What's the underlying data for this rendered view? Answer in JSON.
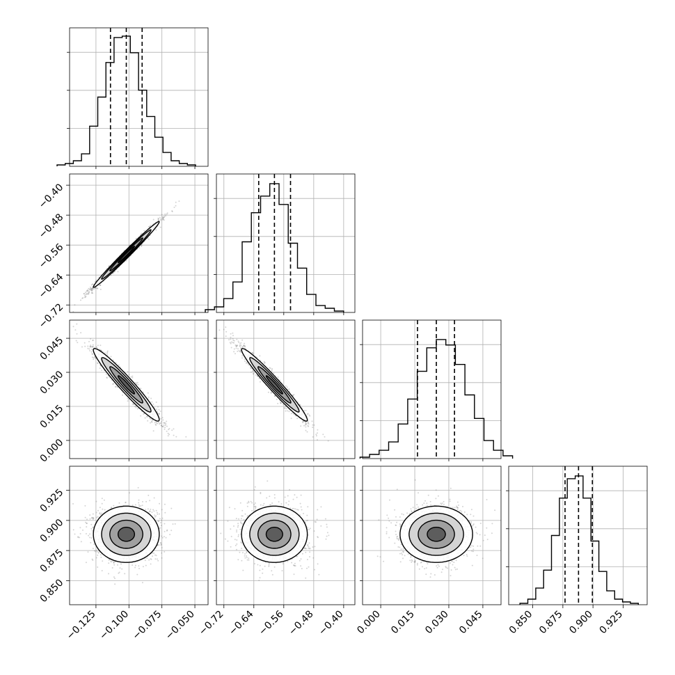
{
  "chart_data": {
    "type": "scatter",
    "plot_kind": "corner",
    "grid": true,
    "params": [
      {
        "ticks": [
          -0.125,
          -0.1,
          -0.075,
          -0.05
        ],
        "tick_labels": [
          "−0.125",
          "−0.100",
          "−0.075",
          "−0.050"
        ],
        "range": [
          -0.145,
          -0.04
        ],
        "mean": -0.102,
        "sd": 0.0125,
        "quantiles": [
          -0.114,
          -0.102,
          -0.09
        ]
      },
      {
        "ticks": [
          -0.72,
          -0.64,
          -0.56,
          -0.48,
          -0.4
        ],
        "tick_labels": [
          "−0.72",
          "−0.64",
          "−0.56",
          "−0.48",
          "−0.40"
        ],
        "range": [
          -0.74,
          -0.37
        ],
        "mean": -0.585,
        "sd": 0.044,
        "quantiles": [
          -0.627,
          -0.585,
          -0.542
        ]
      },
      {
        "ticks": [
          0.0,
          0.015,
          0.03,
          0.045
        ],
        "tick_labels": [
          "0.000",
          "0.015",
          "0.030",
          "0.045"
        ],
        "range": [
          -0.008,
          0.053
        ],
        "mean": 0.0245,
        "sd": 0.008,
        "quantiles": [
          0.0162,
          0.0245,
          0.0325
        ]
      },
      {
        "ticks": [
          0.85,
          0.875,
          0.9,
          0.925
        ],
        "tick_labels": [
          "0.850",
          "0.875",
          "0.900",
          "0.925"
        ],
        "range": [
          0.83,
          0.945
        ],
        "mean": 0.8885,
        "sd": 0.0117,
        "quantiles": [
          0.8768,
          0.888,
          0.8995
        ]
      }
    ],
    "correlations": [
      [
        1.0,
        0.99,
        -0.96,
        0.0
      ],
      [
        0.99,
        1.0,
        -0.97,
        0.0
      ],
      [
        -0.96,
        -0.97,
        1.0,
        0.0
      ],
      [
        0.0,
        0.0,
        0.0,
        1.0
      ]
    ],
    "histogram_peaks": [
      [
        0.01,
        0.02,
        0.04,
        0.09,
        0.29,
        0.5,
        0.75,
        0.93,
        0.94,
        0.82,
        0.55,
        0.36,
        0.21,
        0.1,
        0.04,
        0.02,
        0.01
      ],
      [
        0.02,
        0.04,
        0.1,
        0.22,
        0.51,
        0.72,
        0.84,
        0.93,
        0.78,
        0.5,
        0.32,
        0.13,
        0.05,
        0.03,
        0.01
      ],
      [
        0.01,
        0.03,
        0.06,
        0.12,
        0.25,
        0.43,
        0.63,
        0.8,
        0.86,
        0.82,
        0.68,
        0.46,
        0.29,
        0.13,
        0.06,
        0.02
      ],
      [
        0.01,
        0.04,
        0.12,
        0.25,
        0.5,
        0.77,
        0.91,
        0.93,
        0.77,
        0.46,
        0.24,
        0.1,
        0.04,
        0.02,
        0.01
      ]
    ]
  }
}
